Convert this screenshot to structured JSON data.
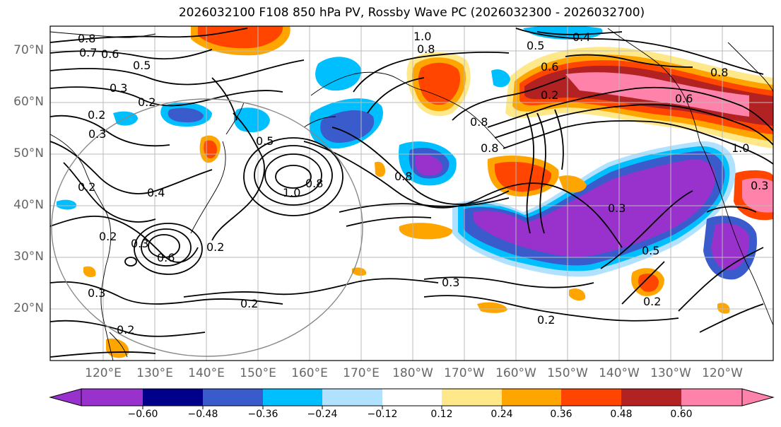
{
  "title": "2026032100 F108 850 hPa PV, Rossby Wave PC (2026032300 - 2026032700)",
  "lat_labels": [
    "70°N",
    "60°N",
    "50°N",
    "40°N",
    "30°N",
    "20°N"
  ],
  "lon_labels": [
    "120°E",
    "130°E",
    "140°E",
    "150°E",
    "160°E",
    "170°E",
    "180°W",
    "170°W",
    "160°W",
    "150°W",
    "140°W",
    "130°W",
    "120°W"
  ],
  "contour_labels": [
    "0.8",
    "0.7",
    "0.6",
    "0.5",
    "0.3",
    "0.2",
    "0.2",
    "0.3",
    "0.2",
    "0.4",
    "0.2",
    "0.3",
    "0.6",
    "0.2",
    "0.3",
    "0.2",
    "0.2",
    "1.0",
    "0.8",
    "0.5",
    "1.0",
    "0.8",
    "0.8",
    "0.8",
    "0.5",
    "0.4",
    "0.6",
    "0.2",
    "0.6",
    "0.8",
    "1.0",
    "0.3",
    "0.3",
    "0.5",
    "0.2",
    "0.3",
    "0.2",
    "0.8"
  ],
  "colorbar": {
    "ticks": [
      "−0.60",
      "−0.48",
      "−0.36",
      "−0.24",
      "−0.12",
      "0.12",
      "0.24",
      "0.36",
      "0.48",
      "0.60"
    ],
    "colors": [
      "#9932CC",
      "#00008B",
      "#3A5BCC",
      "#00BFFF",
      "#B0E2FF",
      "#FFFFFF",
      "#FFE88A",
      "#FFA500",
      "#FF4500",
      "#B22222",
      "#FF82AB",
      "#FF82AB"
    ]
  },
  "colors": {
    "neg_strong": "#9932CC",
    "neg_dark": "#00008B",
    "neg_blue": "#3A5BCC",
    "neg_sky": "#00BFFF",
    "neg_light": "#B0E2FF",
    "pos_yellow": "#FFE88A",
    "pos_orange": "#FFA500",
    "pos_red": "#FF4500",
    "pos_darkred": "#B22222",
    "pos_pink": "#FF82AB"
  }
}
